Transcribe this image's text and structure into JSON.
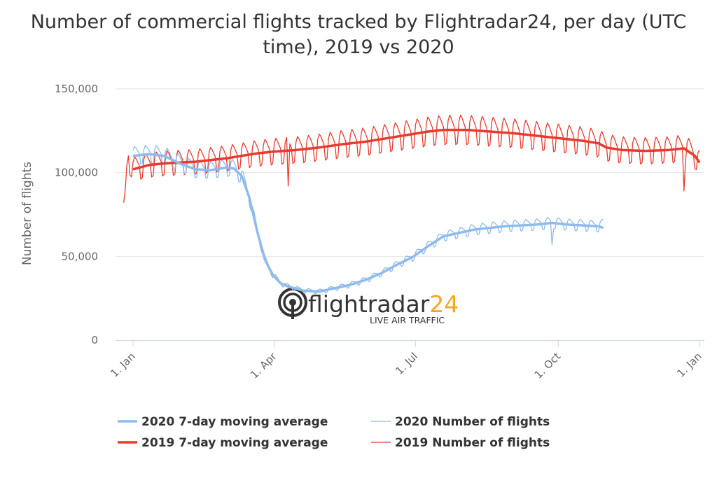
{
  "title": "Number of commercial flights tracked by Flightradar24, per day (UTC time), 2019 vs 2020",
  "chart_data": {
    "type": "line",
    "title": "Number of commercial flights tracked by Flightradar24, per day (UTC time), 2019 vs 2020",
    "ylabel": "Number of flights",
    "xlabel": "",
    "ylim": [
      0,
      150000
    ],
    "xlim_days": [
      0,
      365
    ],
    "y_ticks": [
      {
        "value": 0,
        "label": "0"
      },
      {
        "value": 50000,
        "label": "50,000"
      },
      {
        "value": 100000,
        "label": "100,000"
      },
      {
        "value": 150000,
        "label": "150,000"
      }
    ],
    "x_ticks": [
      {
        "day": 0,
        "label": "1. Jan"
      },
      {
        "day": 91,
        "label": "1. Apr"
      },
      {
        "day": 182,
        "label": "1. Jul"
      },
      {
        "day": 274,
        "label": "1. Oct"
      },
      {
        "day": 365,
        "label": "1. Jan"
      }
    ],
    "grid": true,
    "legend_position": "bottom",
    "series": [
      {
        "name": "2019 7-day moving average",
        "color": "#e83a2f",
        "width": 3.5,
        "kind": "avg",
        "points": [
          [
            0,
            102000
          ],
          [
            10,
            104500
          ],
          [
            20,
            105500
          ],
          [
            40,
            106500
          ],
          [
            60,
            108500
          ],
          [
            70,
            110000
          ],
          [
            80,
            111500
          ],
          [
            90,
            112500
          ],
          [
            105,
            113500
          ],
          [
            120,
            115000
          ],
          [
            135,
            117000
          ],
          [
            150,
            118500
          ],
          [
            160,
            120000
          ],
          [
            170,
            121500
          ],
          [
            180,
            123000
          ],
          [
            190,
            124500
          ],
          [
            200,
            125500
          ],
          [
            215,
            125500
          ],
          [
            230,
            124500
          ],
          [
            245,
            123500
          ],
          [
            260,
            122000
          ],
          [
            275,
            120500
          ],
          [
            290,
            119000
          ],
          [
            300,
            117500
          ],
          [
            305,
            115000
          ],
          [
            315,
            113500
          ],
          [
            330,
            113000
          ],
          [
            345,
            113500
          ],
          [
            355,
            114500
          ],
          [
            362,
            110000
          ],
          [
            365,
            106000
          ]
        ]
      },
      {
        "name": "2019 Number of flights",
        "color": "#e83a2f",
        "width": 1.3,
        "kind": "daily",
        "weekly_amp": 7000,
        "spikes": [
          [
            -6,
            82000
          ],
          [
            -5,
            90000
          ],
          [
            -4,
            104000
          ],
          [
            -3,
            110000
          ],
          [
            100,
            92000
          ],
          [
            355,
            89000
          ],
          [
            361,
            112000
          ]
        ],
        "points": [
          [
            -6,
            82000
          ],
          [
            -3,
            108000
          ],
          [
            0,
            102000
          ],
          [
            10,
            104500
          ],
          [
            20,
            105500
          ],
          [
            40,
            106500
          ],
          [
            60,
            108500
          ],
          [
            70,
            110000
          ],
          [
            80,
            111500
          ],
          [
            90,
            112500
          ],
          [
            105,
            113500
          ],
          [
            120,
            115000
          ],
          [
            135,
            117000
          ],
          [
            150,
            118500
          ],
          [
            160,
            120000
          ],
          [
            170,
            121500
          ],
          [
            180,
            123000
          ],
          [
            190,
            124500
          ],
          [
            200,
            125500
          ],
          [
            215,
            125500
          ],
          [
            230,
            124500
          ],
          [
            245,
            123500
          ],
          [
            260,
            122000
          ],
          [
            275,
            120500
          ],
          [
            290,
            119000
          ],
          [
            300,
            117500
          ],
          [
            305,
            115000
          ],
          [
            315,
            113500
          ],
          [
            330,
            113000
          ],
          [
            345,
            113500
          ],
          [
            355,
            114500
          ],
          [
            362,
            110000
          ],
          [
            365,
            106000
          ]
        ]
      },
      {
        "name": "2020 7-day moving average",
        "color": "#8fbbec",
        "width": 3.5,
        "kind": "avg",
        "points": [
          [
            0,
            110000
          ],
          [
            10,
            111000
          ],
          [
            20,
            110000
          ],
          [
            30,
            105500
          ],
          [
            40,
            102000
          ],
          [
            50,
            101500
          ],
          [
            60,
            103000
          ],
          [
            65,
            102500
          ],
          [
            70,
            98000
          ],
          [
            75,
            85000
          ],
          [
            80,
            65000
          ],
          [
            85,
            48000
          ],
          [
            90,
            39000
          ],
          [
            95,
            34000
          ],
          [
            100,
            32000
          ],
          [
            110,
            29500
          ],
          [
            120,
            29000
          ],
          [
            130,
            31000
          ],
          [
            140,
            33000
          ],
          [
            150,
            36000
          ],
          [
            160,
            40000
          ],
          [
            170,
            45000
          ],
          [
            180,
            49500
          ],
          [
            190,
            56000
          ],
          [
            200,
            62000
          ],
          [
            210,
            64000
          ],
          [
            220,
            66000
          ],
          [
            240,
            68000
          ],
          [
            260,
            69000
          ],
          [
            270,
            70000
          ],
          [
            280,
            69000
          ],
          [
            290,
            68500
          ],
          [
            300,
            68000
          ],
          [
            303,
            67000
          ]
        ]
      },
      {
        "name": "2020 Number of flights",
        "color": "#8fbbec",
        "width": 1.3,
        "kind": "daily",
        "weekly_amp": 5000,
        "spikes": [
          [
            270,
            57000
          ]
        ],
        "points": [
          [
            0,
            110000
          ],
          [
            10,
            111000
          ],
          [
            20,
            110000
          ],
          [
            30,
            105500
          ],
          [
            40,
            102000
          ],
          [
            50,
            101500
          ],
          [
            60,
            103000
          ],
          [
            65,
            102500
          ],
          [
            70,
            98000
          ],
          [
            75,
            85000
          ],
          [
            80,
            65000
          ],
          [
            85,
            48000
          ],
          [
            90,
            39000
          ],
          [
            95,
            34000
          ],
          [
            100,
            32000
          ],
          [
            110,
            29500
          ],
          [
            120,
            29000
          ],
          [
            130,
            31000
          ],
          [
            140,
            33000
          ],
          [
            150,
            36000
          ],
          [
            160,
            40000
          ],
          [
            170,
            45000
          ],
          [
            180,
            49500
          ],
          [
            190,
            56000
          ],
          [
            200,
            62000
          ],
          [
            210,
            64000
          ],
          [
            220,
            66000
          ],
          [
            240,
            68000
          ],
          [
            260,
            69000
          ],
          [
            270,
            70000
          ],
          [
            280,
            69000
          ],
          [
            290,
            68500
          ],
          [
            300,
            68000
          ],
          [
            303,
            69000
          ]
        ]
      }
    ]
  },
  "legend": [
    {
      "name": "2020 7-day moving average",
      "color": "#8fbbec",
      "thick": true
    },
    {
      "name": "2020 Number of flights",
      "color": "#8fbbec",
      "thick": false
    },
    {
      "name": "2019 7-day moving average",
      "color": "#e83a2f",
      "thick": true
    },
    {
      "name": "2019 Number of flights",
      "color": "#e83a2f",
      "thick": false
    }
  ],
  "logo": {
    "brand_main": "flightradar",
    "brand_num": "24",
    "tagline": "LIVE AIR TRAFFIC",
    "color_dark": "#333333",
    "color_accent": "#f5a623"
  }
}
